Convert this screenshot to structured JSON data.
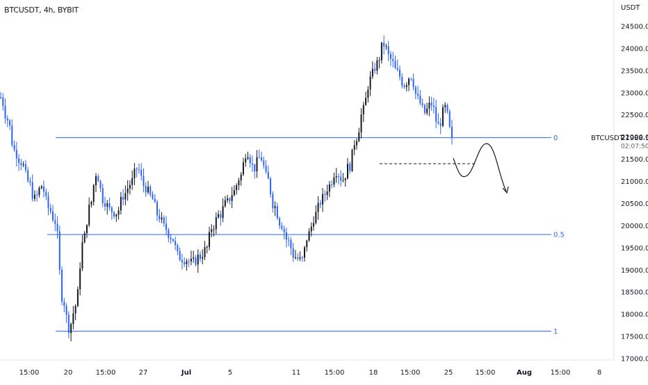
{
  "title": "BTCUSDT, 4h, BYBIT",
  "chart_data": {
    "type": "candlestick",
    "symbol": "BTCUSDT",
    "interval": "4h",
    "exchange": "BYBIT",
    "y_axis_unit": "USDT",
    "ylim": [
      16900,
      24900
    ],
    "y_ticks": [
      "24500.0",
      "24000.0",
      "23500.0",
      "23000.0",
      "22500.0",
      "22000.0",
      "21500.0",
      "21000.0",
      "20500.0",
      "20000.0",
      "19500.0",
      "19000.0",
      "18500.0",
      "18000.0",
      "17500.0",
      "17000.0"
    ],
    "x_ticks": [
      "15:00",
      "20",
      "15:00",
      "27",
      "Jul",
      "5",
      "11",
      "15:00",
      "18",
      "15:00",
      "25",
      "15:00",
      "Aug",
      "15:00",
      "8"
    ],
    "last_price": {
      "symbol": "BTCUSDT",
      "price": "21988.5",
      "countdown": "02:07:50"
    },
    "fib_levels": [
      {
        "label": "0",
        "price": 21988.5
      },
      {
        "label": "0.5",
        "price": 19800
      },
      {
        "label": "1",
        "price": 17620
      }
    ],
    "dashed_level_price": 21400,
    "colors": {
      "up": "#131722",
      "down": "#2962ff",
      "fib_line": "#2962ff",
      "axis_text": "#131722"
    },
    "close_path": [
      22900,
      22400,
      21700,
      21450,
      21000,
      20600,
      20900,
      20400,
      20100,
      18400,
      17700,
      18200,
      19600,
      20400,
      21200,
      20600,
      20350,
      20300,
      20700,
      20950,
      21300,
      20900,
      20650,
      20250,
      19950,
      19750,
      19300,
      19250,
      19150,
      19300,
      19450,
      20000,
      20250,
      20500,
      20750,
      21100,
      21700,
      21300,
      21550,
      21050,
      20450,
      20050,
      19650,
      19300,
      19200,
      19800,
      20250,
      20600,
      20900,
      21250,
      21050,
      21350,
      22000,
      22600,
      23300,
      23650,
      24100,
      23750,
      23450,
      23200,
      23400,
      22850,
      22550,
      22750,
      22250,
      22650,
      21988.5
    ],
    "path_style": "smooth"
  }
}
